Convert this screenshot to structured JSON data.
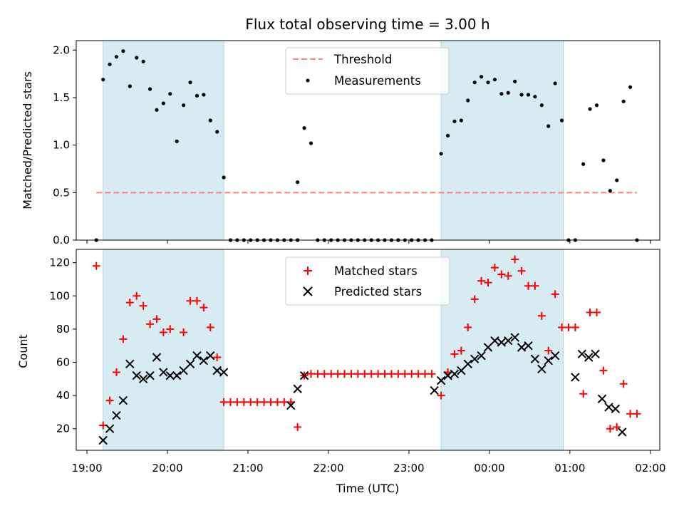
{
  "chart_data": [
    {
      "type": "scatter",
      "title": "Flux total observing time = 3.00 h",
      "ylabel": "Matched/Predicted stars",
      "xlabel": "",
      "ylim": [
        0,
        2.1
      ],
      "yticks": [
        "0.0",
        "0.5",
        "1.0",
        "1.5",
        "2.0"
      ],
      "xlim": [
        "18:52",
        "02:07"
      ],
      "legend_placement": "top-center",
      "shaded_intervals": [
        [
          "19:12",
          "20:42"
        ],
        [
          "23:24",
          "00:55"
        ]
      ],
      "threshold": {
        "name": "Threshold",
        "y": 0.5,
        "x_range": [
          "19:07",
          "01:50"
        ],
        "color": "#ff7f7f",
        "style": "dashed"
      },
      "series": [
        {
          "name": "Measurements",
          "marker": "dot",
          "color": "#000000",
          "points": [
            {
              "x": "19:07",
              "y": 0.0
            },
            {
              "x": "19:12",
              "y": 1.69
            },
            {
              "x": "19:17",
              "y": 1.85
            },
            {
              "x": "19:22",
              "y": 1.93
            },
            {
              "x": "19:27",
              "y": 1.99
            },
            {
              "x": "19:32",
              "y": 1.62
            },
            {
              "x": "19:37",
              "y": 1.92
            },
            {
              "x": "19:42",
              "y": 1.88
            },
            {
              "x": "19:47",
              "y": 1.59
            },
            {
              "x": "19:52",
              "y": 1.37
            },
            {
              "x": "19:57",
              "y": 1.44
            },
            {
              "x": "20:02",
              "y": 1.54
            },
            {
              "x": "20:07",
              "y": 1.04
            },
            {
              "x": "20:12",
              "y": 1.42
            },
            {
              "x": "20:17",
              "y": 1.66
            },
            {
              "x": "20:22",
              "y": 1.52
            },
            {
              "x": "20:27",
              "y": 1.53
            },
            {
              "x": "20:32",
              "y": 1.26
            },
            {
              "x": "20:37",
              "y": 1.14
            },
            {
              "x": "20:42",
              "y": 0.66
            },
            {
              "x": "20:47",
              "y": 0.0
            },
            {
              "x": "20:52",
              "y": 0.0
            },
            {
              "x": "20:57",
              "y": 0.0
            },
            {
              "x": "21:02",
              "y": 0.0
            },
            {
              "x": "21:07",
              "y": 0.0
            },
            {
              "x": "21:12",
              "y": 0.0
            },
            {
              "x": "21:17",
              "y": 0.0
            },
            {
              "x": "21:22",
              "y": 0.0
            },
            {
              "x": "21:27",
              "y": 0.0
            },
            {
              "x": "21:32",
              "y": 0.0
            },
            {
              "x": "21:37",
              "y": 0.0
            },
            {
              "x": "21:37",
              "y": 0.61
            },
            {
              "x": "21:42",
              "y": 1.18
            },
            {
              "x": "21:47",
              "y": 1.02
            },
            {
              "x": "21:52",
              "y": 0.0
            },
            {
              "x": "21:57",
              "y": 0.0
            },
            {
              "x": "22:02",
              "y": 0.0
            },
            {
              "x": "22:07",
              "y": 0.0
            },
            {
              "x": "22:12",
              "y": 0.0
            },
            {
              "x": "22:17",
              "y": 0.0
            },
            {
              "x": "22:22",
              "y": 0.0
            },
            {
              "x": "22:27",
              "y": 0.0
            },
            {
              "x": "22:32",
              "y": 0.0
            },
            {
              "x": "22:37",
              "y": 0.0
            },
            {
              "x": "22:42",
              "y": 0.0
            },
            {
              "x": "22:47",
              "y": 0.0
            },
            {
              "x": "22:52",
              "y": 0.0
            },
            {
              "x": "22:57",
              "y": 0.0
            },
            {
              "x": "23:02",
              "y": 0.0
            },
            {
              "x": "23:07",
              "y": 0.0
            },
            {
              "x": "23:12",
              "y": 0.0
            },
            {
              "x": "23:17",
              "y": 0.0
            },
            {
              "x": "23:24",
              "y": 0.91
            },
            {
              "x": "23:29",
              "y": 1.1
            },
            {
              "x": "23:34",
              "y": 1.25
            },
            {
              "x": "23:39",
              "y": 1.26
            },
            {
              "x": "23:44",
              "y": 1.47
            },
            {
              "x": "23:49",
              "y": 1.66
            },
            {
              "x": "23:54",
              "y": 1.72
            },
            {
              "x": "23:59",
              "y": 1.66
            },
            {
              "x": "00:04",
              "y": 1.69
            },
            {
              "x": "00:09",
              "y": 1.54
            },
            {
              "x": "00:14",
              "y": 1.55
            },
            {
              "x": "00:19",
              "y": 1.67
            },
            {
              "x": "00:24",
              "y": 1.53
            },
            {
              "x": "00:29",
              "y": 1.53
            },
            {
              "x": "00:34",
              "y": 1.51
            },
            {
              "x": "00:39",
              "y": 1.42
            },
            {
              "x": "00:44",
              "y": 1.2
            },
            {
              "x": "00:49",
              "y": 1.65
            },
            {
              "x": "00:54",
              "y": 1.26
            },
            {
              "x": "00:59",
              "y": 0.0
            },
            {
              "x": "01:04",
              "y": 0.0
            },
            {
              "x": "01:10",
              "y": 0.8
            },
            {
              "x": "01:15",
              "y": 1.38
            },
            {
              "x": "01:20",
              "y": 1.42
            },
            {
              "x": "01:25",
              "y": 0.84
            },
            {
              "x": "01:30",
              "y": 0.52
            },
            {
              "x": "01:35",
              "y": 0.63
            },
            {
              "x": "01:40",
              "y": 1.46
            },
            {
              "x": "01:45",
              "y": 1.61
            },
            {
              "x": "01:50",
              "y": 0.0
            }
          ]
        }
      ]
    },
    {
      "type": "scatter",
      "title": "",
      "xlabel": "Time (UTC)",
      "ylabel": "Count",
      "ylim": [
        7,
        128
      ],
      "yticks": [
        "20",
        "40",
        "60",
        "80",
        "100",
        "120"
      ],
      "xlim": [
        "18:52",
        "02:07"
      ],
      "xticks": [
        "19:00",
        "20:00",
        "21:00",
        "22:00",
        "23:00",
        "00:00",
        "01:00",
        "02:00"
      ],
      "legend_placement": "top-center",
      "shaded_intervals": [
        [
          "19:12",
          "20:42"
        ],
        [
          "23:24",
          "00:55"
        ]
      ],
      "series": [
        {
          "name": "Matched stars",
          "marker": "plus",
          "color": "#ff0000",
          "points": [
            {
              "x": "19:07",
              "y": 118
            },
            {
              "x": "19:12",
              "y": 22
            },
            {
              "x": "19:17",
              "y": 37
            },
            {
              "x": "19:22",
              "y": 54
            },
            {
              "x": "19:27",
              "y": 74
            },
            {
              "x": "19:32",
              "y": 96
            },
            {
              "x": "19:37",
              "y": 100
            },
            {
              "x": "19:42",
              "y": 94
            },
            {
              "x": "19:47",
              "y": 83
            },
            {
              "x": "19:52",
              "y": 86
            },
            {
              "x": "19:57",
              "y": 78
            },
            {
              "x": "20:02",
              "y": 80
            },
            {
              "x": "20:12",
              "y": 78
            },
            {
              "x": "20:17",
              "y": 97
            },
            {
              "x": "20:22",
              "y": 97
            },
            {
              "x": "20:27",
              "y": 93
            },
            {
              "x": "20:32",
              "y": 81
            },
            {
              "x": "20:37",
              "y": 63
            },
            {
              "x": "20:42",
              "y": 36
            },
            {
              "x": "20:47",
              "y": 36
            },
            {
              "x": "20:52",
              "y": 36
            },
            {
              "x": "20:57",
              "y": 36
            },
            {
              "x": "21:02",
              "y": 36
            },
            {
              "x": "21:07",
              "y": 36
            },
            {
              "x": "21:12",
              "y": 36
            },
            {
              "x": "21:17",
              "y": 36
            },
            {
              "x": "21:22",
              "y": 36
            },
            {
              "x": "21:27",
              "y": 36
            },
            {
              "x": "21:32",
              "y": 36
            },
            {
              "x": "21:37",
              "y": 21
            },
            {
              "x": "21:42",
              "y": 52
            },
            {
              "x": "21:47",
              "y": 53
            },
            {
              "x": "21:52",
              "y": 53
            },
            {
              "x": "21:57",
              "y": 53
            },
            {
              "x": "22:02",
              "y": 53
            },
            {
              "x": "22:07",
              "y": 53
            },
            {
              "x": "22:12",
              "y": 53
            },
            {
              "x": "22:17",
              "y": 53
            },
            {
              "x": "22:22",
              "y": 53
            },
            {
              "x": "22:27",
              "y": 53
            },
            {
              "x": "22:32",
              "y": 53
            },
            {
              "x": "22:37",
              "y": 53
            },
            {
              "x": "22:42",
              "y": 53
            },
            {
              "x": "22:47",
              "y": 53
            },
            {
              "x": "22:52",
              "y": 53
            },
            {
              "x": "22:57",
              "y": 53
            },
            {
              "x": "23:02",
              "y": 53
            },
            {
              "x": "23:07",
              "y": 53
            },
            {
              "x": "23:12",
              "y": 53
            },
            {
              "x": "23:17",
              "y": 53
            },
            {
              "x": "23:24",
              "y": 40
            },
            {
              "x": "23:29",
              "y": 54
            },
            {
              "x": "23:34",
              "y": 65
            },
            {
              "x": "23:39",
              "y": 67
            },
            {
              "x": "23:44",
              "y": 81
            },
            {
              "x": "23:49",
              "y": 98
            },
            {
              "x": "23:54",
              "y": 109
            },
            {
              "x": "23:59",
              "y": 108
            },
            {
              "x": "00:04",
              "y": 117
            },
            {
              "x": "00:09",
              "y": 113
            },
            {
              "x": "00:14",
              "y": 112
            },
            {
              "x": "00:19",
              "y": 122
            },
            {
              "x": "00:24",
              "y": 115
            },
            {
              "x": "00:29",
              "y": 106
            },
            {
              "x": "00:34",
              "y": 106
            },
            {
              "x": "00:39",
              "y": 88
            },
            {
              "x": "00:44",
              "y": 67
            },
            {
              "x": "00:49",
              "y": 101
            },
            {
              "x": "00:54",
              "y": 81
            },
            {
              "x": "00:59",
              "y": 81
            },
            {
              "x": "01:04",
              "y": 81
            },
            {
              "x": "01:10",
              "y": 41
            },
            {
              "x": "01:15",
              "y": 90
            },
            {
              "x": "01:20",
              "y": 90
            },
            {
              "x": "01:25",
              "y": 55
            },
            {
              "x": "01:30",
              "y": 20
            },
            {
              "x": "01:35",
              "y": 21
            },
            {
              "x": "01:40",
              "y": 47
            },
            {
              "x": "01:45",
              "y": 29
            },
            {
              "x": "01:50",
              "y": 29
            }
          ]
        },
        {
          "name": "Predicted stars",
          "marker": "x",
          "color": "#000000",
          "points": [
            {
              "x": "19:12",
              "y": 13
            },
            {
              "x": "19:17",
              "y": 20
            },
            {
              "x": "19:22",
              "y": 28
            },
            {
              "x": "19:27",
              "y": 37
            },
            {
              "x": "19:32",
              "y": 59
            },
            {
              "x": "19:37",
              "y": 52
            },
            {
              "x": "19:42",
              "y": 50
            },
            {
              "x": "19:47",
              "y": 52
            },
            {
              "x": "19:52",
              "y": 63
            },
            {
              "x": "19:57",
              "y": 54
            },
            {
              "x": "20:02",
              "y": 52
            },
            {
              "x": "20:07",
              "y": 52
            },
            {
              "x": "20:12",
              "y": 55
            },
            {
              "x": "20:17",
              "y": 59
            },
            {
              "x": "20:22",
              "y": 64
            },
            {
              "x": "20:27",
              "y": 61
            },
            {
              "x": "20:32",
              "y": 64
            },
            {
              "x": "20:37",
              "y": 55
            },
            {
              "x": "20:42",
              "y": 54
            },
            {
              "x": "21:32",
              "y": 34
            },
            {
              "x": "21:37",
              "y": 44
            },
            {
              "x": "21:42",
              "y": 52
            },
            {
              "x": "23:19",
              "y": 43
            },
            {
              "x": "23:24",
              "y": 49
            },
            {
              "x": "23:29",
              "y": 52
            },
            {
              "x": "23:34",
              "y": 53
            },
            {
              "x": "23:39",
              "y": 55
            },
            {
              "x": "23:44",
              "y": 59
            },
            {
              "x": "23:49",
              "y": 62
            },
            {
              "x": "23:54",
              "y": 64
            },
            {
              "x": "23:59",
              "y": 69
            },
            {
              "x": "00:04",
              "y": 73
            },
            {
              "x": "00:09",
              "y": 72
            },
            {
              "x": "00:14",
              "y": 73
            },
            {
              "x": "00:19",
              "y": 75
            },
            {
              "x": "00:24",
              "y": 69
            },
            {
              "x": "00:29",
              "y": 70
            },
            {
              "x": "00:34",
              "y": 62
            },
            {
              "x": "00:39",
              "y": 56
            },
            {
              "x": "00:44",
              "y": 61
            },
            {
              "x": "00:49",
              "y": 64
            },
            {
              "x": "01:04",
              "y": 51
            },
            {
              "x": "01:09",
              "y": 65
            },
            {
              "x": "01:14",
              "y": 63
            },
            {
              "x": "01:19",
              "y": 65
            },
            {
              "x": "01:24",
              "y": 38
            },
            {
              "x": "01:29",
              "y": 33
            },
            {
              "x": "01:34",
              "y": 32
            },
            {
              "x": "01:39",
              "y": 18
            }
          ]
        }
      ]
    }
  ]
}
